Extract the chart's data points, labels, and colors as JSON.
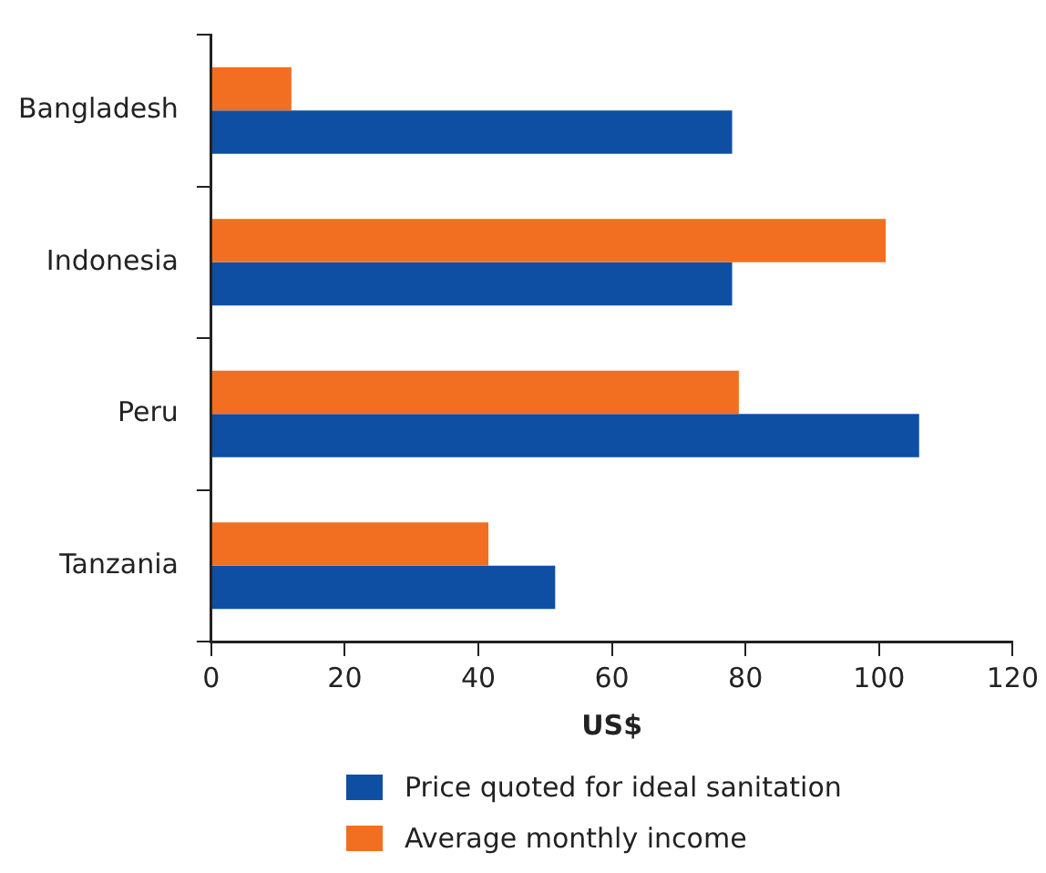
{
  "chart_data": {
    "type": "bar",
    "orientation": "horizontal",
    "xlabel": "US$",
    "categories": [
      "Bangladesh",
      "Indonesia",
      "Peru",
      "Tanzania"
    ],
    "series": [
      {
        "name": "Price quoted for ideal sanitation",
        "color": "#0e4fa3",
        "values": [
          78,
          78,
          106,
          51.5
        ]
      },
      {
        "name": "Average monthly income",
        "color": "#f26f22",
        "values": [
          12,
          101,
          79,
          41.5
        ]
      }
    ],
    "xlim": [
      0,
      120
    ],
    "xticks": [
      0,
      20,
      40,
      60,
      80,
      100,
      120
    ],
    "grid": false,
    "legend": "bottom"
  }
}
